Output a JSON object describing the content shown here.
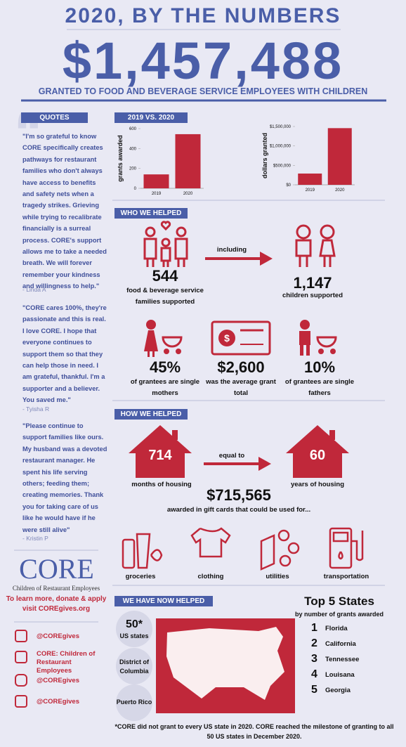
{
  "header": {
    "title": "2020, BY THE NUMBERS",
    "amount": "$1,457,488",
    "subtitle": "GRANTED TO FOOD AND BEVERAGE SERVICE EMPLOYEES WITH CHILDREN"
  },
  "quotes": {
    "heading": "QUOTES",
    "items": [
      {
        "text": "\"I'm so grateful to know CORE specifically creates pathways for restaurant families who don't always have access to benefits and safety nets when a tragedy strikes. Grieving while trying to recalibrate financially is a surreal process. CORE's support allows me to take a needed breath. We will forever remember your kindness and willingness to help.\"",
        "author": "- Linda A"
      },
      {
        "text": "\"CORE cares 100%, they're passionate and this is real. I love CORE. I hope that everyone continues to support them so that they can help those in need. I am grateful, thankful. I'm a supporter and a believer. You saved me.\"",
        "author": "- Tyisha R"
      },
      {
        "text": "\"Please continue to support families like ours. My husband was a devoted restaurant manager. He spent his life serving others; feeding them; creating memories. Thank you for taking care of us like he would have if he were still alive\"",
        "author": "- Kristin P"
      }
    ]
  },
  "core": {
    "logo": "CORE",
    "tagline": "Children of Restaurant Employees",
    "cta": "To learn more, donate & apply visit COREgives.org"
  },
  "social": [
    "@COREgives",
    "CORE: Children of Restaurant Employees",
    "@COREgives",
    "@COREgives"
  ],
  "comparison": {
    "heading": "2019 VS. 2020"
  },
  "chart_data": [
    {
      "type": "bar",
      "ylabel": "grants awarded",
      "categories": [
        "2019",
        "2020"
      ],
      "values": [
        140,
        544
      ],
      "color": "#c0283a",
      "ylim": [
        0,
        600
      ],
      "yticks": [
        0,
        200,
        400,
        600
      ]
    },
    {
      "type": "bar",
      "ylabel": "dollars granted",
      "categories": [
        "2019",
        "2020"
      ],
      "values": [
        290000,
        1457488
      ],
      "color": "#c0283a",
      "ylim": [
        0,
        1500000
      ],
      "yticks": [
        {
          "value": 0,
          "label": "$0"
        },
        {
          "value": 500000,
          "label": "$500,000"
        },
        {
          "value": 1000000,
          "label": "$1,000,000"
        },
        {
          "value": 1500000,
          "label": "$1,500,000"
        }
      ]
    }
  ],
  "who": {
    "heading": "WHO WE HELPED",
    "connector": "including",
    "stats": [
      {
        "value": "544",
        "label": "food & beverage service families supported"
      },
      {
        "value": "1,147",
        "label": "children supported"
      },
      {
        "value": "45%",
        "label": "of grantees are single mothers"
      },
      {
        "value": "$2,600",
        "label": "was the average grant total"
      },
      {
        "value": "10%",
        "label": "of grantees are single fathers"
      }
    ]
  },
  "how": {
    "heading": "HOW WE HELPED",
    "connector": "equal to",
    "months": "714",
    "months_label": "months of housing",
    "years": "60",
    "years_label": "years of housing",
    "gift": "$715,565",
    "gift_label": "awarded in gift cards that could be used for...",
    "uses": [
      "groceries",
      "clothing",
      "utilities",
      "transportation"
    ]
  },
  "reach": {
    "heading": "WE HAVE NOW HELPED",
    "items": [
      {
        "value": "50*",
        "label": "US states"
      },
      {
        "label": "District of Columbia"
      },
      {
        "label": "Puerto Rico"
      }
    ]
  },
  "top5": {
    "title": "Top 5 States",
    "subtitle": "by number of grants awarded",
    "items": [
      {
        "rank": "1",
        "state": "Florida"
      },
      {
        "rank": "2",
        "state": "California"
      },
      {
        "rank": "3",
        "state": "Tennessee"
      },
      {
        "rank": "4",
        "state": "Louisana"
      },
      {
        "rank": "5",
        "state": "Georgia"
      }
    ]
  },
  "footnote": "*CORE did not grant to every US state in 2020. CORE reached the milestone of granting to all 50 US states in December 2020."
}
